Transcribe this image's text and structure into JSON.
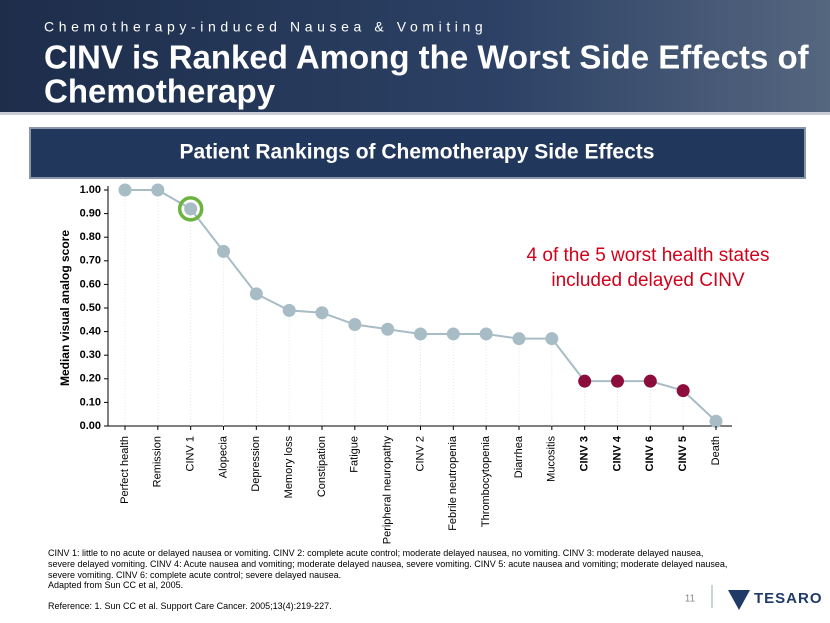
{
  "header": {
    "subtitle": "Chemotherapy-induced Nausea & Vomiting",
    "title_lines": [
      "CINV is Ranked Among the Worst Side Effects of",
      "Chemotherapy"
    ]
  },
  "chart_data": {
    "type": "line",
    "title": "Patient Rankings of Chemotherapy Side Effects",
    "y_label": "Median visual analog score",
    "categories": [
      "Perfect health",
      "Remission",
      "CINV 1",
      "Alopecia",
      "Depression",
      "Memory loss",
      "Constipation",
      "Fatigue",
      "Peripheral neuropathy",
      "CINV 2",
      "Febrile neutropenia",
      "Thrombocytopenia",
      "Diarrhea",
      "Mucositis",
      "CINV 3",
      "CINV 4",
      "CINV 6",
      "CINV 5",
      "Death"
    ],
    "series": [
      {
        "name": "Median visual analog score",
        "color": "#a8bcc6",
        "values": [
          1.0,
          1.0,
          0.92,
          0.74,
          0.56,
          0.49,
          0.48,
          0.43,
          0.41,
          0.39,
          0.39,
          0.39,
          0.37,
          0.37,
          0.19,
          0.19,
          0.19,
          0.15,
          0.02
        ],
        "marker_colors": [
          "#a8bcc6",
          "#a8bcc6",
          "#a8bcc6",
          "#a8bcc6",
          "#a8bcc6",
          "#a8bcc6",
          "#a8bcc6",
          "#a8bcc6",
          "#a8bcc6",
          "#a8bcc6",
          "#a8bcc6",
          "#a8bcc6",
          "#a8bcc6",
          "#a8bcc6",
          "#8c0c3c",
          "#8c0c3c",
          "#8c0c3c",
          "#8c0c3c",
          "#a8bcc6"
        ]
      }
    ],
    "highlight_categories": [
      "CINV 1"
    ],
    "highlight_color": "#6cb33f",
    "bold_categories": [
      "CINV 3",
      "CINV 4",
      "CINV 6",
      "CINV 5"
    ],
    "ylim": [
      0,
      1
    ],
    "yticks": [
      {
        "value": 0,
        "label": "0.00"
      },
      {
        "value": 0.1,
        "label": "0.10"
      },
      {
        "value": 0.2,
        "label": "0.20"
      },
      {
        "value": 0.3,
        "label": "0.30"
      },
      {
        "value": 0.4,
        "label": "0.40"
      },
      {
        "value": 0.5,
        "label": "0.50"
      },
      {
        "value": 0.6,
        "label": "0.60"
      },
      {
        "value": 0.7,
        "label": "0.70"
      },
      {
        "value": 0.8,
        "label": "0.80"
      },
      {
        "value": 0.9,
        "label": "0.90"
      },
      {
        "value": 1,
        "label": "1.00"
      }
    ],
    "annotation_lines": [
      "4 of the 5 worst health states",
      "included delayed CINV"
    ],
    "annotation_color": "#d0021b"
  },
  "footer": {
    "definitions": "CINV 1: little to no acute or delayed nausea or vomiting. CINV 2: complete acute control; moderate delayed nausea, no vomiting. CINV 3: moderate delayed nausea, severe delayed vomiting. CINV 4: Acute nausea and vomiting; moderate delayed nausea, severe vomiting. CINV 5: acute nausea and vomiting; moderate delayed nausea, severe vomiting. CINV 6: complete acute control; severe delayed nausea.",
    "source": "Adapted from Sun CC et al, 2005.",
    "reference": "Reference: 1. Sun CC et al. Support Care Cancer. 2005;13(4):219-227.",
    "page_number": "11",
    "logo": "TESARO"
  }
}
